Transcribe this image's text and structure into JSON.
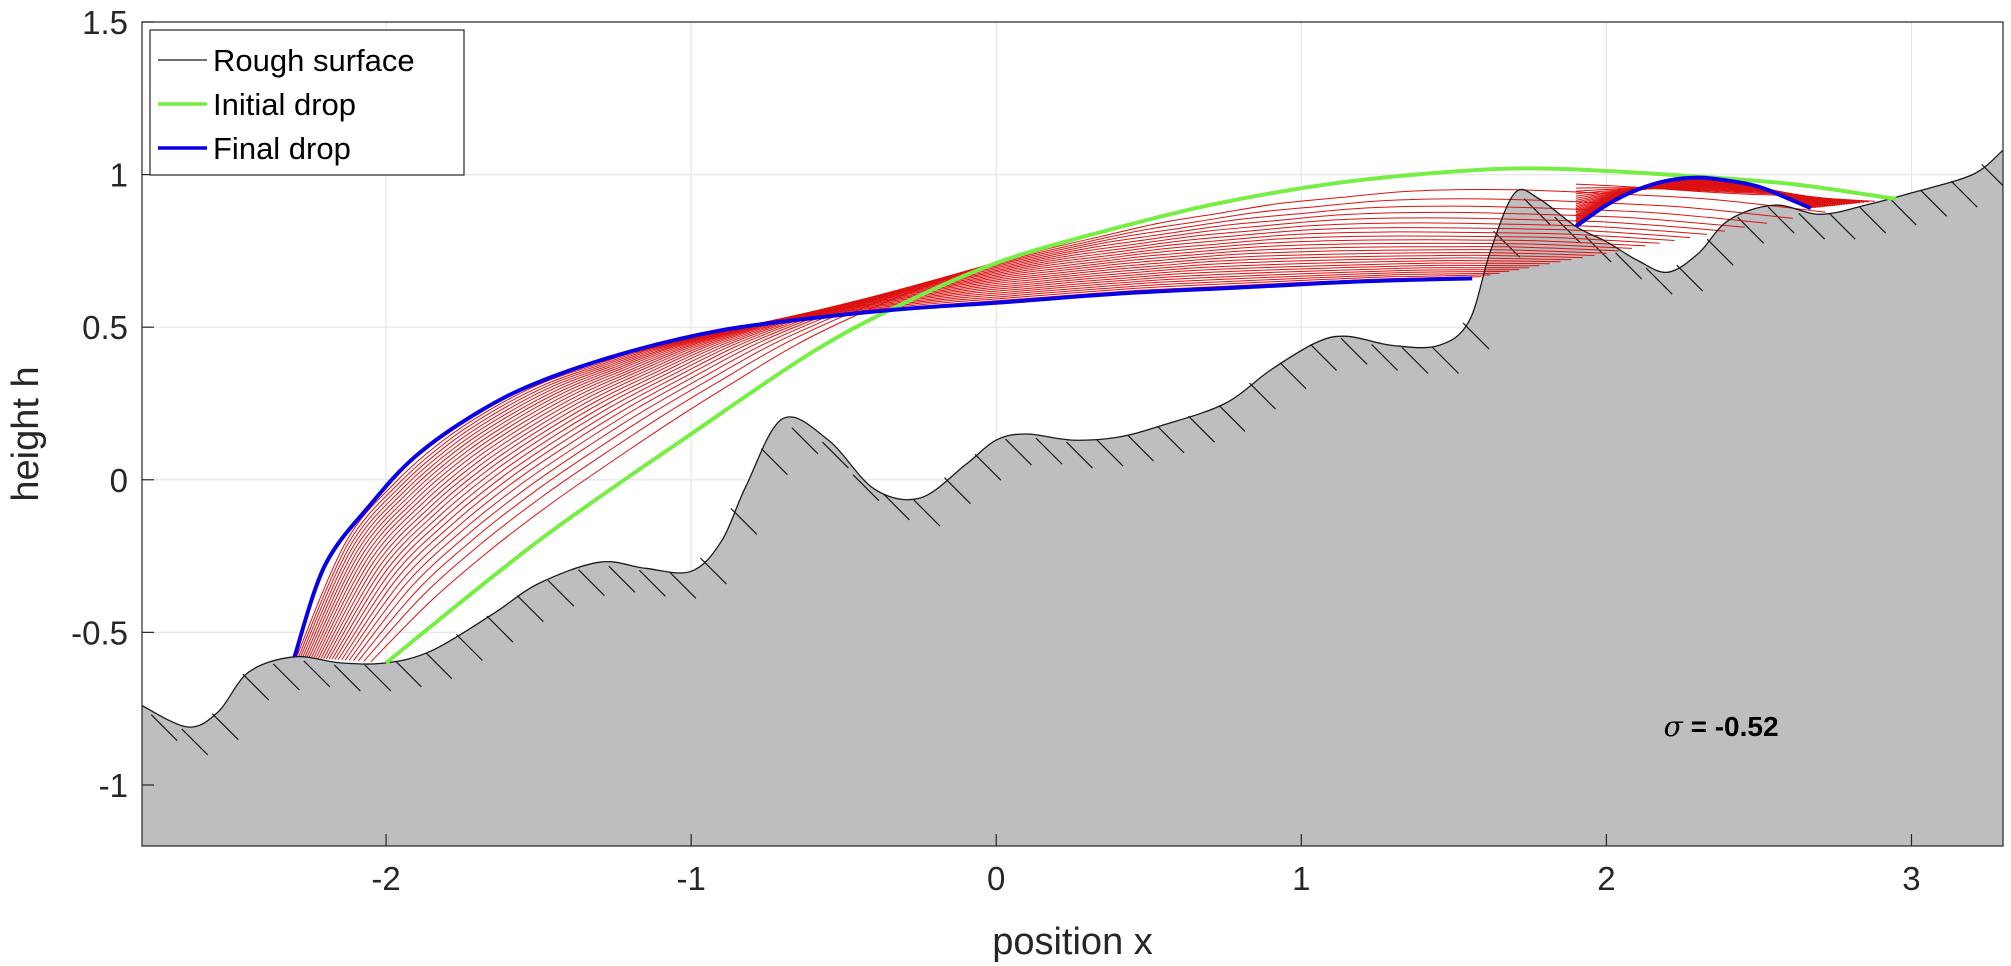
{
  "chart_data": {
    "type": "line",
    "xlabel": "position x",
    "ylabel": "height h",
    "xlim": [
      -2.8,
      3.3
    ],
    "ylim": [
      -1.2,
      1.5
    ],
    "xticks": [
      -2,
      -1,
      0,
      1,
      2,
      3
    ],
    "xtick_labels": [
      "-2",
      "-1",
      "0",
      "1",
      "2",
      "3"
    ],
    "yticks": [
      -1,
      -0.5,
      0,
      0.5,
      1,
      1.5
    ],
    "ytick_labels": [
      "-1",
      "-0.5",
      "0",
      "0.5",
      "1",
      "1.5"
    ],
    "grid": true,
    "legend_position": "top-left",
    "legend": [
      "Rough surface",
      "Initial drop",
      "Final drop"
    ],
    "annotation": {
      "symbol": "σ",
      "text": " = -0.52",
      "x": 2.45,
      "y": -0.81
    },
    "colors": {
      "surface_fill": "#bdbebf",
      "surface_line": "#1a1a1a",
      "initial": "#77ee44",
      "final": "#0a00e6",
      "intermediate": "#dd1111"
    },
    "series": [
      {
        "name": "Rough surface",
        "role": "surface",
        "x": [
          -2.8,
          -2.65,
          -2.55,
          -2.45,
          -2.3,
          -2.15,
          -2.0,
          -1.85,
          -1.65,
          -1.5,
          -1.3,
          -1.15,
          -1.0,
          -0.9,
          -0.82,
          -0.7,
          -0.55,
          -0.4,
          -0.25,
          -0.1,
          0.0,
          0.1,
          0.25,
          0.4,
          0.55,
          0.75,
          0.9,
          1.05,
          1.15,
          1.3,
          1.45,
          1.55,
          1.62,
          1.7,
          1.78,
          1.9,
          2.0,
          2.1,
          2.2,
          2.3,
          2.4,
          2.55,
          2.7,
          2.85,
          3.0,
          3.2,
          3.3
        ],
        "y": [
          -0.74,
          -0.81,
          -0.76,
          -0.63,
          -0.58,
          -0.6,
          -0.6,
          -0.56,
          -0.44,
          -0.34,
          -0.27,
          -0.29,
          -0.3,
          -0.2,
          -0.02,
          0.2,
          0.13,
          -0.03,
          -0.06,
          0.05,
          0.13,
          0.15,
          0.13,
          0.14,
          0.18,
          0.25,
          0.36,
          0.45,
          0.47,
          0.44,
          0.44,
          0.52,
          0.75,
          0.94,
          0.92,
          0.83,
          0.78,
          0.72,
          0.68,
          0.74,
          0.85,
          0.9,
          0.87,
          0.9,
          0.94,
          1.0,
          1.08
        ]
      },
      {
        "name": "Initial drop",
        "role": "initial",
        "segments": [
          {
            "x": [
              -2.0,
              -1.5,
              -1.0,
              -0.6,
              -0.3,
              0.0,
              0.3,
              0.7,
              1.1,
              1.5,
              1.8,
              2.2,
              2.6,
              2.95
            ],
            "y": [
              -0.6,
              -0.2,
              0.15,
              0.42,
              0.58,
              0.71,
              0.8,
              0.9,
              0.97,
              1.01,
              1.02,
              1.0,
              0.97,
              0.92
            ]
          }
        ]
      },
      {
        "name": "Final drop",
        "role": "final",
        "segments": [
          {
            "x": [
              -2.3,
              -2.2,
              -2.05,
              -1.9,
              -1.7,
              -1.5,
              -1.2,
              -0.9,
              -0.6,
              -0.3,
              0.0,
              0.4,
              0.8,
              1.2,
              1.56
            ],
            "y": [
              -0.58,
              -0.28,
              -0.08,
              0.08,
              0.22,
              0.32,
              0.42,
              0.49,
              0.53,
              0.56,
              0.58,
              0.61,
              0.63,
              0.65,
              0.66
            ]
          },
          {
            "x": [
              1.9,
              2.0,
              2.1,
              2.2,
              2.3,
              2.4,
              2.5,
              2.6,
              2.67
            ],
            "y": [
              0.83,
              0.9,
              0.95,
              0.98,
              0.99,
              0.98,
              0.96,
              0.92,
              0.89
            ]
          }
        ]
      }
    ]
  }
}
